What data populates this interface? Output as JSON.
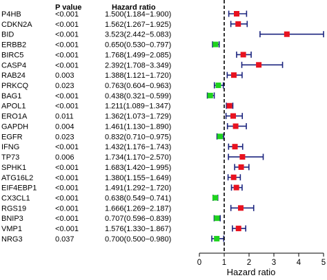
{
  "chart_data": {
    "type": "forest",
    "columns": [
      "",
      "P value",
      "Hazard ratio"
    ],
    "rows": [
      {
        "gene": "P4HB",
        "p": "<0.001",
        "hr_text": "1.500(1.184−1.900)",
        "hr": 1.5,
        "lo": 1.184,
        "hi": 1.9
      },
      {
        "gene": "CDKN2A",
        "p": "<0.001",
        "hr_text": "1.562(1.267−1.925)",
        "hr": 1.562,
        "lo": 1.267,
        "hi": 1.925
      },
      {
        "gene": "BID",
        "p": "<0.001",
        "hr_text": "3.523(2.442−5.083)",
        "hr": 3.523,
        "lo": 2.442,
        "hi": 5.083
      },
      {
        "gene": "ERBB2",
        "p": "<0.001",
        "hr_text": "0.650(0.530−0.797)",
        "hr": 0.65,
        "lo": 0.53,
        "hi": 0.797
      },
      {
        "gene": "BIRC5",
        "p": "<0.001",
        "hr_text": "1.768(1.499−2.085)",
        "hr": 1.768,
        "lo": 1.499,
        "hi": 2.085
      },
      {
        "gene": "CASP4",
        "p": "<0.001",
        "hr_text": "2.392(1.708−3.349)",
        "hr": 2.392,
        "lo": 1.708,
        "hi": 3.349
      },
      {
        "gene": "RAB24",
        "p": "0.003",
        "hr_text": "1.388(1.121−1.720)",
        "hr": 1.388,
        "lo": 1.121,
        "hi": 1.72
      },
      {
        "gene": "PRKCQ",
        "p": "0.023",
        "hr_text": "0.763(0.604−0.963)",
        "hr": 0.763,
        "lo": 0.604,
        "hi": 0.963
      },
      {
        "gene": "BAG1",
        "p": "<0.001",
        "hr_text": "0.438(0.321−0.599)",
        "hr": 0.438,
        "lo": 0.321,
        "hi": 0.599
      },
      {
        "gene": "APOL1",
        "p": "<0.001",
        "hr_text": "1.211(1.089−1.347)",
        "hr": 1.211,
        "lo": 1.089,
        "hi": 1.347
      },
      {
        "gene": "ERO1A",
        "p": "0.011",
        "hr_text": "1.362(1.073−1.729)",
        "hr": 1.362,
        "lo": 1.073,
        "hi": 1.729
      },
      {
        "gene": "GAPDH",
        "p": "0.004",
        "hr_text": "1.461(1.130−1.890)",
        "hr": 1.461,
        "lo": 1.13,
        "hi": 1.89
      },
      {
        "gene": "EGFR",
        "p": "0.023",
        "hr_text": "0.832(0.710−0.975)",
        "hr": 0.832,
        "lo": 0.71,
        "hi": 0.975
      },
      {
        "gene": "IFNG",
        "p": "<0.001",
        "hr_text": "1.432(1.176−1.743)",
        "hr": 1.432,
        "lo": 1.176,
        "hi": 1.743
      },
      {
        "gene": "TP73",
        "p": "0.006",
        "hr_text": "1.734(1.170−2.570)",
        "hr": 1.734,
        "lo": 1.17,
        "hi": 2.57
      },
      {
        "gene": "SPHK1",
        "p": "<0.001",
        "hr_text": "1.683(1.420−1.995)",
        "hr": 1.683,
        "lo": 1.42,
        "hi": 1.995
      },
      {
        "gene": "ATG16L2",
        "p": "<0.001",
        "hr_text": "1.380(1.155−1.649)",
        "hr": 1.38,
        "lo": 1.155,
        "hi": 1.649
      },
      {
        "gene": "EIF4EBP1",
        "p": "<0.001",
        "hr_text": "1.491(1.292−1.720)",
        "hr": 1.491,
        "lo": 1.292,
        "hi": 1.72
      },
      {
        "gene": "CX3CL1",
        "p": "<0.001",
        "hr_text": "0.638(0.549−0.741)",
        "hr": 0.638,
        "lo": 0.549,
        "hi": 0.741
      },
      {
        "gene": "RGS19",
        "p": "<0.001",
        "hr_text": "1.666(1.269−2.187)",
        "hr": 1.666,
        "lo": 1.269,
        "hi": 2.187
      },
      {
        "gene": "BNIP3",
        "p": "<0.001",
        "hr_text": "0.707(0.596−0.839)",
        "hr": 0.707,
        "lo": 0.596,
        "hi": 0.839
      },
      {
        "gene": "VMP1",
        "p": "<0.001",
        "hr_text": "1.576(1.330−1.867)",
        "hr": 1.576,
        "lo": 1.33,
        "hi": 1.867
      },
      {
        "gene": "NRG3",
        "p": "0.037",
        "hr_text": "0.700(0.500−0.980)",
        "hr": 0.7,
        "lo": 0.5,
        "hi": 0.98
      }
    ],
    "xlim": [
      0,
      5
    ],
    "xticks": [
      0,
      1,
      2,
      3,
      4,
      5
    ],
    "xlabel": "Hazard ratio",
    "reference_line": 1,
    "colors": {
      "risk": "#e8121f",
      "protective": "#1fd31f",
      "whisker": "#1a237e",
      "reference": "#000000"
    }
  }
}
